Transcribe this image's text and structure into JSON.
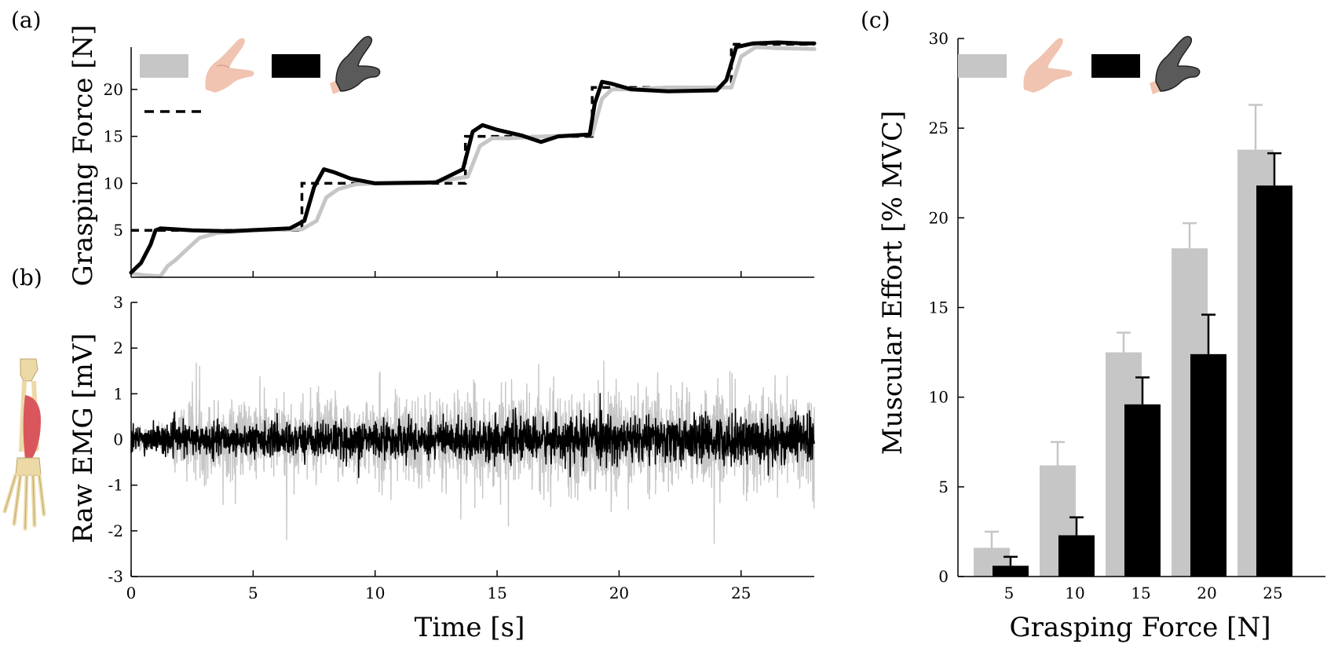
{
  "panel_labels": [
    "(a)",
    "(b)",
    "(c)"
  ],
  "colors": {
    "human_hand": "#c6c6c6",
    "robotic_hand": "#000000",
    "skin": "#f0c4b0",
    "robot_glove": "#5a5a5a",
    "bone": "#ecd9a6",
    "muscle": "#d9565d"
  },
  "legend_icons": [
    "human-hand-icon",
    "robotic-hand-icon",
    "forearm-muscle-icon"
  ],
  "chart_data": [
    {
      "id": "a",
      "type": "line",
      "xlabel": "",
      "ylabel": "Grasping Force [N]",
      "xlim": [
        0,
        28
      ],
      "ylim": [
        0,
        24.5
      ],
      "yticks": [
        5,
        10,
        15,
        20
      ],
      "xticks": [
        5,
        10,
        15,
        20,
        25
      ],
      "legend": "top-left",
      "series": [
        {
          "style": "reference-dashed",
          "x": [
            0,
            7,
            7,
            13.7,
            13.7,
            18.9,
            18.9,
            24.6,
            24.6,
            28
          ],
          "y": [
            5,
            5,
            10,
            10,
            15,
            15,
            20.2,
            20.2,
            24.8,
            24.8
          ]
        },
        {
          "style": "human-gray",
          "x": [
            0,
            0.6,
            1.2,
            1.5,
            1.8,
            2.3,
            2.8,
            3.5,
            5,
            7,
            7.6,
            8.0,
            8.5,
            9.2,
            10,
            12,
            13.8,
            14.3,
            14.8,
            15.5,
            17,
            18.9,
            19.3,
            19.7,
            20.5,
            22,
            24.6,
            25.0,
            25.6,
            26.5,
            28
          ],
          "y": [
            0.4,
            0.2,
            0.1,
            1.2,
            1.8,
            3.0,
            4.2,
            4.7,
            5.0,
            5.1,
            6.0,
            8.5,
            9.4,
            9.9,
            10.0,
            10.0,
            10.7,
            14.0,
            14.8,
            14.8,
            15.0,
            15.2,
            19.0,
            20.0,
            20.0,
            20.2,
            20.2,
            23.5,
            24.5,
            24.4,
            24.3
          ]
        },
        {
          "style": "robot-black",
          "x": [
            0,
            0.4,
            0.8,
            1.0,
            1.2,
            2.5,
            4,
            6.5,
            7.1,
            7.5,
            7.9,
            8.3,
            9,
            10,
            12.5,
            13.6,
            14.0,
            14.4,
            15,
            16,
            16.8,
            17.5,
            18.8,
            19.0,
            19.3,
            19.7,
            20.5,
            22,
            24.0,
            24.4,
            24.8,
            25.5,
            26.5,
            27.5,
            28
          ],
          "y": [
            0.5,
            1.5,
            3.5,
            5.0,
            5.2,
            5.0,
            4.9,
            5.2,
            6.0,
            9.6,
            11.5,
            11.2,
            10.5,
            10.0,
            10.1,
            11.5,
            15.5,
            16.2,
            15.7,
            15.1,
            14.4,
            15.0,
            15.2,
            18.5,
            20.8,
            20.6,
            20.0,
            19.8,
            19.9,
            21.0,
            24.5,
            24.9,
            25.0,
            24.9,
            24.9
          ]
        }
      ]
    },
    {
      "id": "b",
      "type": "line",
      "xlabel": "Time [s]",
      "ylabel": "Raw EMG [mV]",
      "xlim": [
        0,
        28
      ],
      "ylim": [
        -3,
        3
      ],
      "xticks": [
        0,
        5,
        10,
        15,
        20,
        25
      ],
      "yticks": [
        -3,
        -2,
        -1,
        0,
        1,
        2,
        3
      ],
      "series": [
        {
          "style": "human-gray",
          "noise_band": {
            "x": [
              0,
              1.7,
              1.8,
              7,
              10,
              15,
              20,
              25,
              28
            ],
            "amplitude": [
              0.35,
              0.35,
              1.0,
              1.0,
              1.1,
              1.2,
              1.2,
              1.25,
              1.35
            ]
          }
        },
        {
          "style": "robot-black",
          "noise_band": {
            "x": [
              0,
              7,
              14,
              20,
              25,
              28
            ],
            "amplitude": [
              0.35,
              0.42,
              0.5,
              0.55,
              0.6,
              0.62
            ]
          }
        }
      ]
    },
    {
      "id": "c",
      "type": "bar",
      "xlabel": "Grasping Force [N]",
      "ylabel": "Muscular Effort [% MVC]",
      "categories": [
        "5",
        "10",
        "15",
        "20",
        "25"
      ],
      "ylim": [
        0,
        30
      ],
      "yticks": [
        0,
        5,
        10,
        15,
        20,
        25,
        30
      ],
      "legend": "top-left",
      "series": [
        {
          "style": "human-gray",
          "values": [
            1.6,
            6.2,
            12.5,
            18.3,
            23.8
          ],
          "errors": [
            0.9,
            1.3,
            1.1,
            1.4,
            2.5
          ]
        },
        {
          "style": "robot-black",
          "values": [
            0.6,
            2.3,
            9.6,
            12.4,
            21.8
          ],
          "errors": [
            0.5,
            1.0,
            1.5,
            2.2,
            1.8
          ]
        }
      ]
    }
  ]
}
